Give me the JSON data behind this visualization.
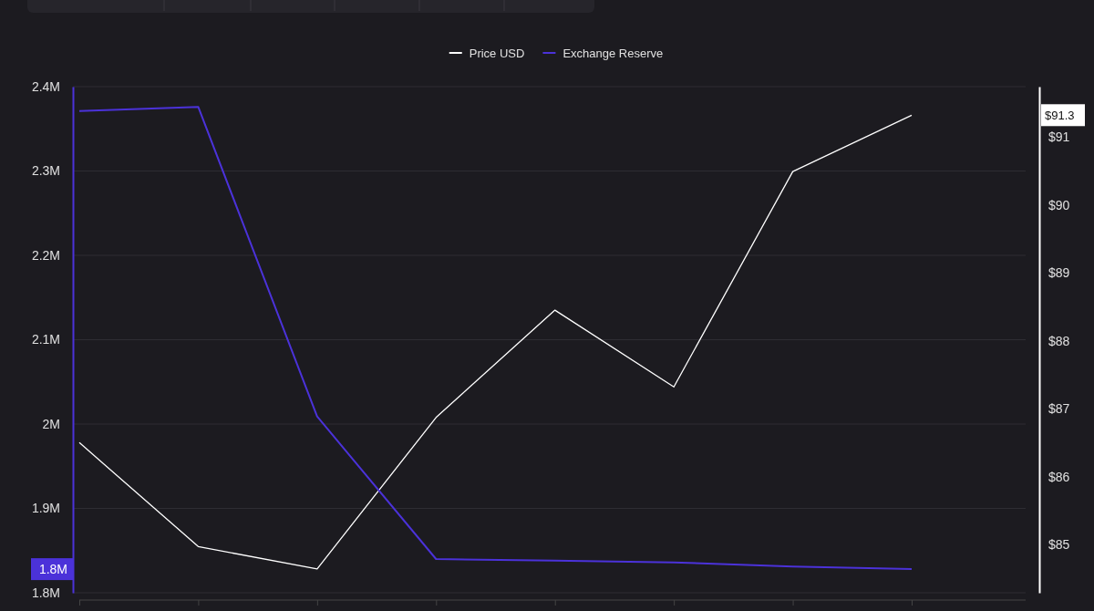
{
  "chart_data": {
    "type": "line",
    "categories": [
      null,
      null,
      null,
      null,
      null,
      null,
      null,
      null
    ],
    "series": [
      {
        "name": "Price USD",
        "color": "#ffffff",
        "axis": "y2",
        "values": [
          86.5,
          84.97,
          84.64,
          86.87,
          88.45,
          87.32,
          90.49,
          91.32
        ]
      },
      {
        "name": "Exchange Reserve",
        "color": "#4b32d9",
        "values": [
          2.371,
          2.376,
          2.009,
          1.84,
          1.838,
          1.836,
          1.831,
          1.828
        ]
      }
    ],
    "ylim": [
      1.8,
      2.4
    ],
    "yticks": [
      {
        "value": 1.8,
        "label": "1.8M"
      },
      {
        "value": 1.9,
        "label": "1.9M"
      },
      {
        "value": 2.0,
        "label": "2M"
      },
      {
        "value": 2.1,
        "label": "2.1M"
      },
      {
        "value": 2.2,
        "label": "2.2M"
      },
      {
        "value": 2.3,
        "label": "2.3M"
      },
      {
        "value": 2.4,
        "label": "2.4M"
      }
    ],
    "y2lim": [
      84.29,
      91.74
    ],
    "y2ticks": [
      {
        "value": 85,
        "label": "$85"
      },
      {
        "value": 86,
        "label": "$86"
      },
      {
        "value": 87,
        "label": "$87"
      },
      {
        "value": 88,
        "label": "$88"
      },
      {
        "value": 89,
        "label": "$89"
      },
      {
        "value": 90,
        "label": "$90"
      },
      {
        "value": 91,
        "label": "$91"
      }
    ],
    "annotations": [
      "1.8M",
      "$91.3"
    ],
    "grid": "y",
    "legend": "top",
    "marker": "none",
    "line_style": "solid"
  }
}
